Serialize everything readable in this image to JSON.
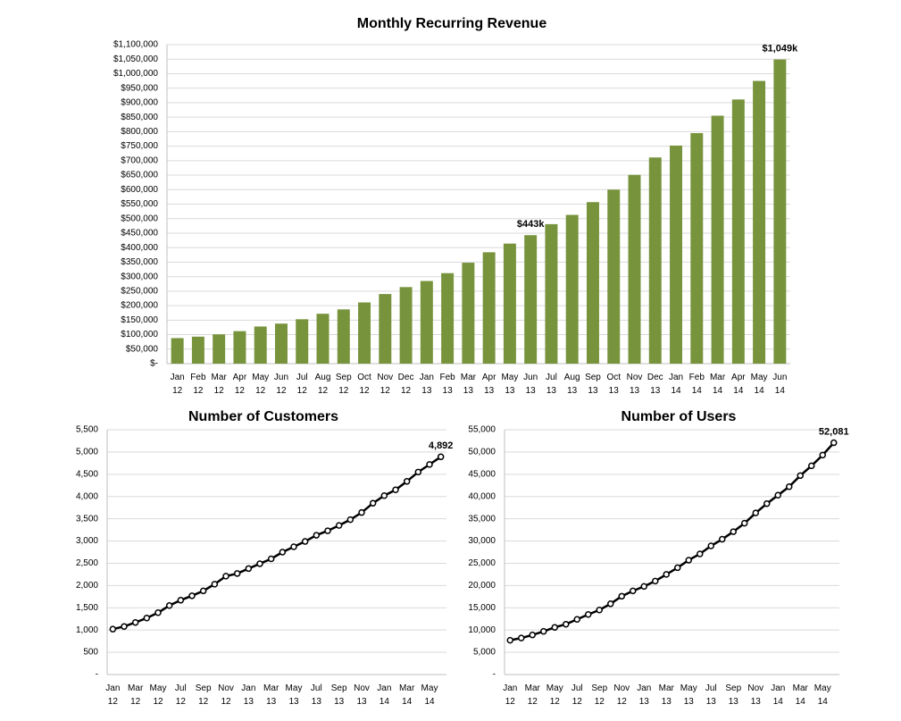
{
  "chart_data": [
    {
      "type": "bar",
      "title": "Monthly Recurring Revenue",
      "color": "#77933c",
      "grid": true,
      "categories": [
        [
          "Jan",
          "12"
        ],
        [
          "Feb",
          "12"
        ],
        [
          "Mar",
          "12"
        ],
        [
          "Apr",
          "12"
        ],
        [
          "May",
          "12"
        ],
        [
          "Jun",
          "12"
        ],
        [
          "Jul",
          "12"
        ],
        [
          "Aug",
          "12"
        ],
        [
          "Sep",
          "12"
        ],
        [
          "Oct",
          "12"
        ],
        [
          "Nov",
          "12"
        ],
        [
          "Dec",
          "12"
        ],
        [
          "Jan",
          "13"
        ],
        [
          "Feb",
          "13"
        ],
        [
          "Mar",
          "13"
        ],
        [
          "Apr",
          "13"
        ],
        [
          "May",
          "13"
        ],
        [
          "Jun",
          "13"
        ],
        [
          "Jul",
          "13"
        ],
        [
          "Aug",
          "13"
        ],
        [
          "Sep",
          "13"
        ],
        [
          "Oct",
          "13"
        ],
        [
          "Nov",
          "13"
        ],
        [
          "Dec",
          "13"
        ],
        [
          "Jan",
          "14"
        ],
        [
          "Feb",
          "14"
        ],
        [
          "Mar",
          "14"
        ],
        [
          "Apr",
          "14"
        ],
        [
          "May",
          "14"
        ],
        [
          "Jun",
          "14"
        ]
      ],
      "values": [
        88000,
        93000,
        101000,
        112000,
        128000,
        138000,
        153000,
        172000,
        187000,
        211000,
        240000,
        264000,
        285000,
        312000,
        348000,
        384000,
        414000,
        443000,
        481000,
        513000,
        557000,
        600000,
        651000,
        711000,
        752000,
        795000,
        855000,
        911000,
        975000,
        1049000
      ],
      "value_labels": [
        null,
        null,
        null,
        null,
        null,
        null,
        null,
        null,
        null,
        null,
        null,
        null,
        null,
        null,
        null,
        null,
        null,
        "$443k",
        null,
        null,
        null,
        null,
        null,
        null,
        null,
        null,
        null,
        null,
        null,
        "$1,049k"
      ],
      "ylim": [
        0,
        1100000
      ],
      "yticks": [
        {
          "value": 0,
          "label": "$-"
        },
        {
          "value": 50000,
          "label": "$50,000"
        },
        {
          "value": 100000,
          "label": "$100,000"
        },
        {
          "value": 150000,
          "label": "$150,000"
        },
        {
          "value": 200000,
          "label": "$200,000"
        },
        {
          "value": 250000,
          "label": "$250,000"
        },
        {
          "value": 300000,
          "label": "$300,000"
        },
        {
          "value": 350000,
          "label": "$350,000"
        },
        {
          "value": 400000,
          "label": "$400,000"
        },
        {
          "value": 450000,
          "label": "$450,000"
        },
        {
          "value": 500000,
          "label": "$500,000"
        },
        {
          "value": 550000,
          "label": "$550,000"
        },
        {
          "value": 600000,
          "label": "$600,000"
        },
        {
          "value": 650000,
          "label": "$650,000"
        },
        {
          "value": 700000,
          "label": "$700,000"
        },
        {
          "value": 750000,
          "label": "$750,000"
        },
        {
          "value": 800000,
          "label": "$800,000"
        },
        {
          "value": 850000,
          "label": "$850,000"
        },
        {
          "value": 900000,
          "label": "$900,000"
        },
        {
          "value": 950000,
          "label": "$950,000"
        },
        {
          "value": 1000000,
          "label": "$1,000,000"
        },
        {
          "value": 1050000,
          "label": "$1,050,000"
        },
        {
          "value": 1100000,
          "label": "$1,100,000"
        }
      ]
    },
    {
      "type": "line",
      "title": "Number of Customers",
      "color": "#000000",
      "grid": true,
      "categories": [
        [
          "Jan",
          "12"
        ],
        null,
        [
          "Mar",
          "12"
        ],
        null,
        [
          "May",
          "12"
        ],
        null,
        [
          "Jul",
          "12"
        ],
        null,
        [
          "Sep",
          "12"
        ],
        null,
        [
          "Nov",
          "12"
        ],
        null,
        [
          "Jan",
          "13"
        ],
        null,
        [
          "Mar",
          "13"
        ],
        null,
        [
          "May",
          "13"
        ],
        null,
        [
          "Jul",
          "13"
        ],
        null,
        [
          "Sep",
          "13"
        ],
        null,
        [
          "Nov",
          "13"
        ],
        null,
        [
          "Jan",
          "14"
        ],
        null,
        [
          "Mar",
          "14"
        ],
        null,
        [
          "May",
          "14"
        ],
        null
      ],
      "values": [
        1020,
        1080,
        1170,
        1270,
        1390,
        1550,
        1670,
        1770,
        1880,
        2030,
        2210,
        2270,
        2380,
        2490,
        2600,
        2750,
        2870,
        2990,
        3130,
        3230,
        3350,
        3480,
        3640,
        3850,
        4020,
        4150,
        4340,
        4550,
        4720,
        4892
      ],
      "value_labels": [
        null,
        null,
        null,
        null,
        null,
        null,
        null,
        null,
        null,
        null,
        null,
        null,
        null,
        null,
        null,
        null,
        null,
        null,
        null,
        null,
        null,
        null,
        null,
        null,
        null,
        null,
        null,
        null,
        null,
        "4,892"
      ],
      "ylim": [
        0,
        5500
      ],
      "yticks": [
        {
          "value": 0,
          "label": "-"
        },
        500,
        {
          "value": 1000,
          "label": "1,000"
        },
        {
          "value": 1500,
          "label": "1,500"
        },
        {
          "value": 2000,
          "label": "2,000"
        },
        {
          "value": 2500,
          "label": "2,500"
        },
        {
          "value": 3000,
          "label": "3,000"
        },
        {
          "value": 3500,
          "label": "3,500"
        },
        {
          "value": 4000,
          "label": "4,000"
        },
        {
          "value": 4500,
          "label": "4,500"
        },
        {
          "value": 5000,
          "label": "5,000"
        },
        {
          "value": 5500,
          "label": "5,500"
        }
      ]
    },
    {
      "type": "line",
      "title": "Number of Users",
      "color": "#000000",
      "grid": true,
      "categories": [
        [
          "Jan",
          "12"
        ],
        null,
        [
          "Mar",
          "12"
        ],
        null,
        [
          "May",
          "12"
        ],
        null,
        [
          "Jul",
          "12"
        ],
        null,
        [
          "Sep",
          "12"
        ],
        null,
        [
          "Nov",
          "12"
        ],
        null,
        [
          "Jan",
          "13"
        ],
        null,
        [
          "Mar",
          "13"
        ],
        null,
        [
          "May",
          "13"
        ],
        null,
        [
          "Jul",
          "13"
        ],
        null,
        [
          "Sep",
          "13"
        ],
        null,
        [
          "Nov",
          "13"
        ],
        null,
        [
          "Jan",
          "14"
        ],
        null,
        [
          "Mar",
          "14"
        ],
        null,
        [
          "May",
          "14"
        ],
        null
      ],
      "values": [
        7700,
        8200,
        8900,
        9700,
        10600,
        11300,
        12400,
        13500,
        14500,
        15900,
        17600,
        18800,
        19800,
        21000,
        22500,
        24000,
        25700,
        27100,
        28900,
        30400,
        32100,
        34000,
        36300,
        38400,
        40300,
        42200,
        44700,
        46900,
        49300,
        52081
      ],
      "value_labels": [
        null,
        null,
        null,
        null,
        null,
        null,
        null,
        null,
        null,
        null,
        null,
        null,
        null,
        null,
        null,
        null,
        null,
        null,
        null,
        null,
        null,
        null,
        null,
        null,
        null,
        null,
        null,
        null,
        null,
        "52,081"
      ],
      "ylim": [
        0,
        55000
      ],
      "yticks": [
        {
          "value": 0,
          "label": "-"
        },
        {
          "value": 5000,
          "label": "5,000"
        },
        {
          "value": 10000,
          "label": "10,000"
        },
        {
          "value": 15000,
          "label": "15,000"
        },
        {
          "value": 20000,
          "label": "20,000"
        },
        {
          "value": 25000,
          "label": "25,000"
        },
        {
          "value": 30000,
          "label": "30,000"
        },
        {
          "value": 35000,
          "label": "35,000"
        },
        {
          "value": 40000,
          "label": "40,000"
        },
        {
          "value": 45000,
          "label": "45,000"
        },
        {
          "value": 50000,
          "label": "50,000"
        },
        {
          "value": 55000,
          "label": "55,000"
        }
      ]
    }
  ]
}
